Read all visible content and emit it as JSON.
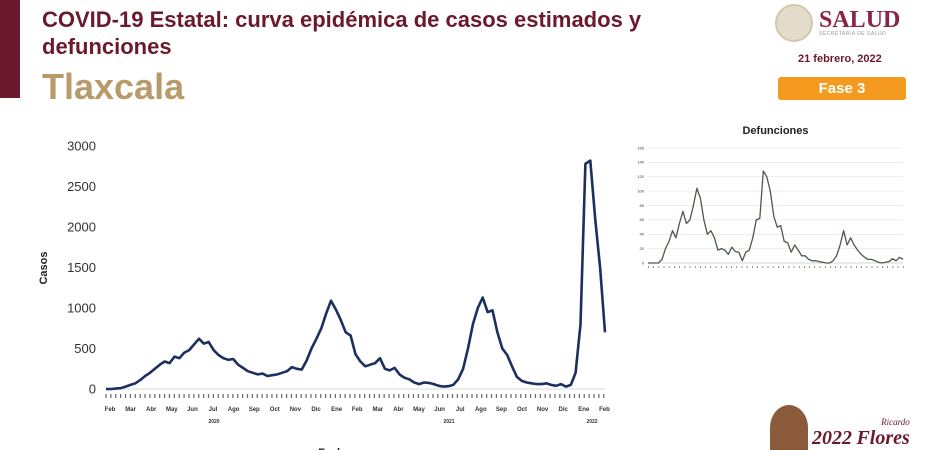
{
  "header": {
    "title": "COVID-19 Estatal: curva epidémica de casos estimados y defunciones",
    "state": "Tlaxcala",
    "date": "21 febrero, 2022",
    "phase": "Fase 3",
    "logo_text": "SALUD",
    "logo_sub": "SECRETARÍA DE SALUD"
  },
  "footer": {
    "year": "2022",
    "name": "Flores",
    "name_top": "Ricardo"
  },
  "chart_data": [
    {
      "type": "line",
      "title": "",
      "xlabel": "Fecha",
      "ylabel": "Casos",
      "ylim": [
        0,
        3000
      ],
      "yticks": [
        0,
        500,
        1000,
        1500,
        2000,
        2500,
        3000
      ],
      "months": [
        "Feb",
        "Mar",
        "Abr",
        "May",
        "Jun",
        "Jul",
        "Ago",
        "Sep",
        "Oct",
        "Nov",
        "Dic",
        "Ene",
        "Feb",
        "Mar",
        "Abr",
        "May",
        "Jun",
        "Jul",
        "Ago",
        "Sep",
        "Oct",
        "Nov",
        "Dic",
        "Ene",
        "Feb"
      ],
      "years": [
        "2020",
        "2021",
        "2022"
      ],
      "color": "#1c2f5e",
      "values": [
        0,
        0,
        5,
        10,
        30,
        50,
        70,
        110,
        160,
        200,
        250,
        300,
        340,
        320,
        400,
        380,
        450,
        480,
        550,
        620,
        560,
        580,
        480,
        420,
        380,
        360,
        370,
        300,
        260,
        220,
        200,
        180,
        190,
        160,
        170,
        180,
        200,
        220,
        270,
        250,
        240,
        350,
        500,
        620,
        750,
        930,
        1090,
        980,
        850,
        700,
        660,
        430,
        340,
        280,
        300,
        320,
        380,
        250,
        230,
        260,
        180,
        140,
        120,
        80,
        60,
        80,
        75,
        60,
        40,
        30,
        35,
        50,
        120,
        250,
        500,
        800,
        1000,
        1130,
        950,
        970,
        700,
        500,
        420,
        280,
        150,
        100,
        80,
        70,
        60,
        60,
        70,
        50,
        40,
        60,
        30,
        50,
        200,
        800,
        2780,
        2820,
        2100,
        1500,
        700
      ]
    },
    {
      "type": "line",
      "title": "Defunciones",
      "ylim": [
        0,
        160
      ],
      "yticks": [
        0,
        20,
        40,
        60,
        80,
        100,
        120,
        140,
        160
      ],
      "color": "#4a5a48",
      "values": [
        0,
        0,
        0,
        0,
        5,
        20,
        30,
        45,
        35,
        55,
        72,
        55,
        60,
        80,
        104,
        90,
        60,
        40,
        45,
        35,
        18,
        20,
        18,
        12,
        22,
        16,
        15,
        3,
        15,
        18,
        35,
        60,
        62,
        128,
        120,
        100,
        65,
        50,
        52,
        30,
        28,
        15,
        25,
        18,
        10,
        10,
        5,
        3,
        3,
        2,
        1,
        0,
        0,
        3,
        10,
        25,
        45,
        25,
        35,
        25,
        18,
        12,
        8,
        5,
        5,
        3,
        1,
        0,
        1,
        2,
        6,
        3,
        8,
        5
      ]
    }
  ]
}
